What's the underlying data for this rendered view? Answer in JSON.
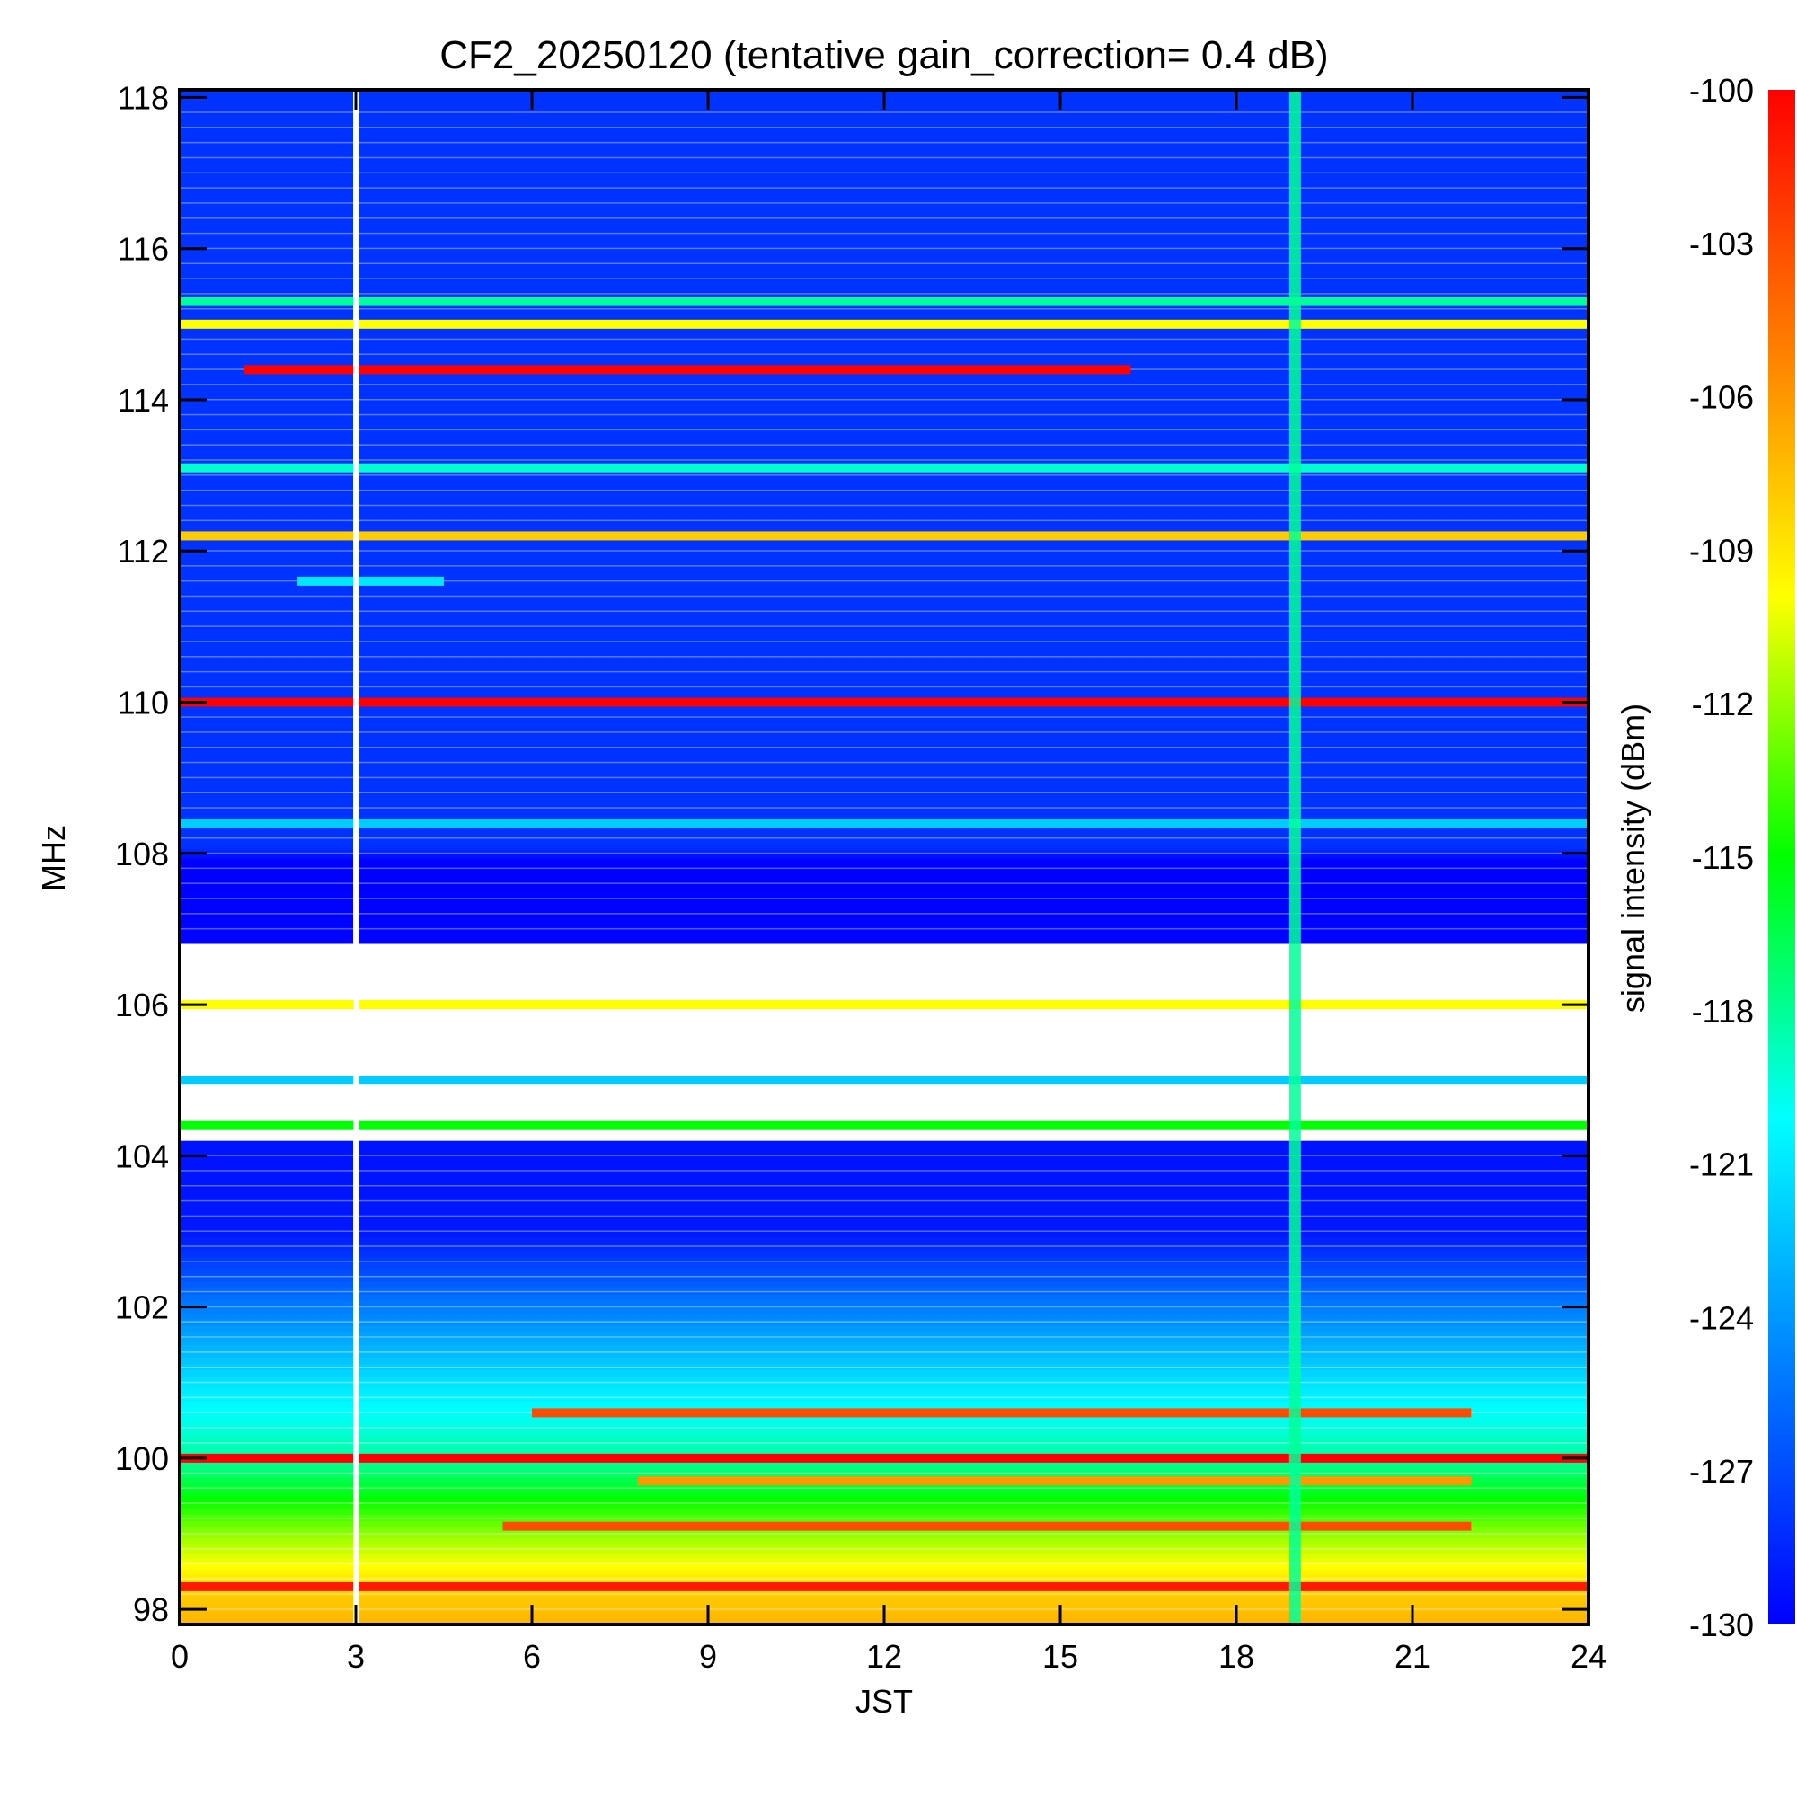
{
  "chart_data": {
    "type": "heatmap",
    "title": "CF2_20250120 (tentative gain_correction=  0.4 dB)",
    "xlabel": "JST",
    "ylabel": "MHz",
    "colorbar_label": "signal intensity (dBm)",
    "xlim": [
      0,
      24
    ],
    "ylim": [
      97.8,
      118.1
    ],
    "x_ticks": [
      0,
      3,
      6,
      9,
      12,
      15,
      18,
      21,
      24
    ],
    "y_ticks": [
      98,
      100,
      102,
      104,
      106,
      108,
      110,
      112,
      114,
      116,
      118
    ],
    "colorbar_range": [
      -130,
      -100
    ],
    "colorbar_ticks": [
      -100,
      -103,
      -106,
      -109,
      -112,
      -115,
      -118,
      -121,
      -124,
      -127,
      -130
    ],
    "colormap": [
      "#0000ff",
      "#0080ff",
      "#00ffff",
      "#00ff00",
      "#ffff00",
      "#ff8000",
      "#ff0000"
    ],
    "data_gap_jst": 3.0,
    "broadband_event": {
      "jst_start": 18.9,
      "jst_end": 19.1,
      "level_dBm": -118
    },
    "signals": [
      {
        "freq_mhz": 114.4,
        "jst_start": 1.1,
        "jst_end": 16.2,
        "level_dBm": -100
      },
      {
        "freq_mhz": 110.0,
        "jst_start": 0,
        "jst_end": 24,
        "level_dBm": -100
      },
      {
        "freq_mhz": 100.0,
        "jst_start": 0,
        "jst_end": 24,
        "level_dBm": -100
      },
      {
        "freq_mhz": 98.3,
        "jst_start": 0,
        "jst_end": 24,
        "level_dBm": -101
      },
      {
        "freq_mhz": 112.2,
        "jst_start": 0,
        "jst_end": 24,
        "level_dBm": -108
      },
      {
        "freq_mhz": 115.0,
        "jst_start": 0,
        "jst_end": 24,
        "level_dBm": -110
      },
      {
        "freq_mhz": 115.3,
        "jst_start": 0,
        "jst_end": 24,
        "level_dBm": -118
      },
      {
        "freq_mhz": 113.1,
        "jst_start": 0,
        "jst_end": 24,
        "level_dBm": -119
      },
      {
        "freq_mhz": 111.6,
        "jst_start": 2.0,
        "jst_end": 4.5,
        "level_dBm": -121
      },
      {
        "freq_mhz": 108.4,
        "jst_start": 0,
        "jst_end": 24,
        "level_dBm": -122
      },
      {
        "freq_mhz": 105.0,
        "jst_start": 0,
        "jst_end": 24,
        "level_dBm": -122
      },
      {
        "freq_mhz": 106.0,
        "jst_start": 0,
        "jst_end": 24,
        "level_dBm": -110
      },
      {
        "freq_mhz": 104.4,
        "jst_start": 0,
        "jst_end": 24,
        "level_dBm": -115
      },
      {
        "freq_mhz": 100.6,
        "jst_start": 6.0,
        "jst_end": 22.0,
        "level_dBm": -103
      },
      {
        "freq_mhz": 99.7,
        "jst_start": 7.8,
        "jst_end": 22.0,
        "level_dBm": -106
      },
      {
        "freq_mhz": 99.1,
        "jst_start": 5.5,
        "jst_end": 22.0,
        "level_dBm": -103
      }
    ],
    "grid": false,
    "legend": "colorbar-right"
  }
}
